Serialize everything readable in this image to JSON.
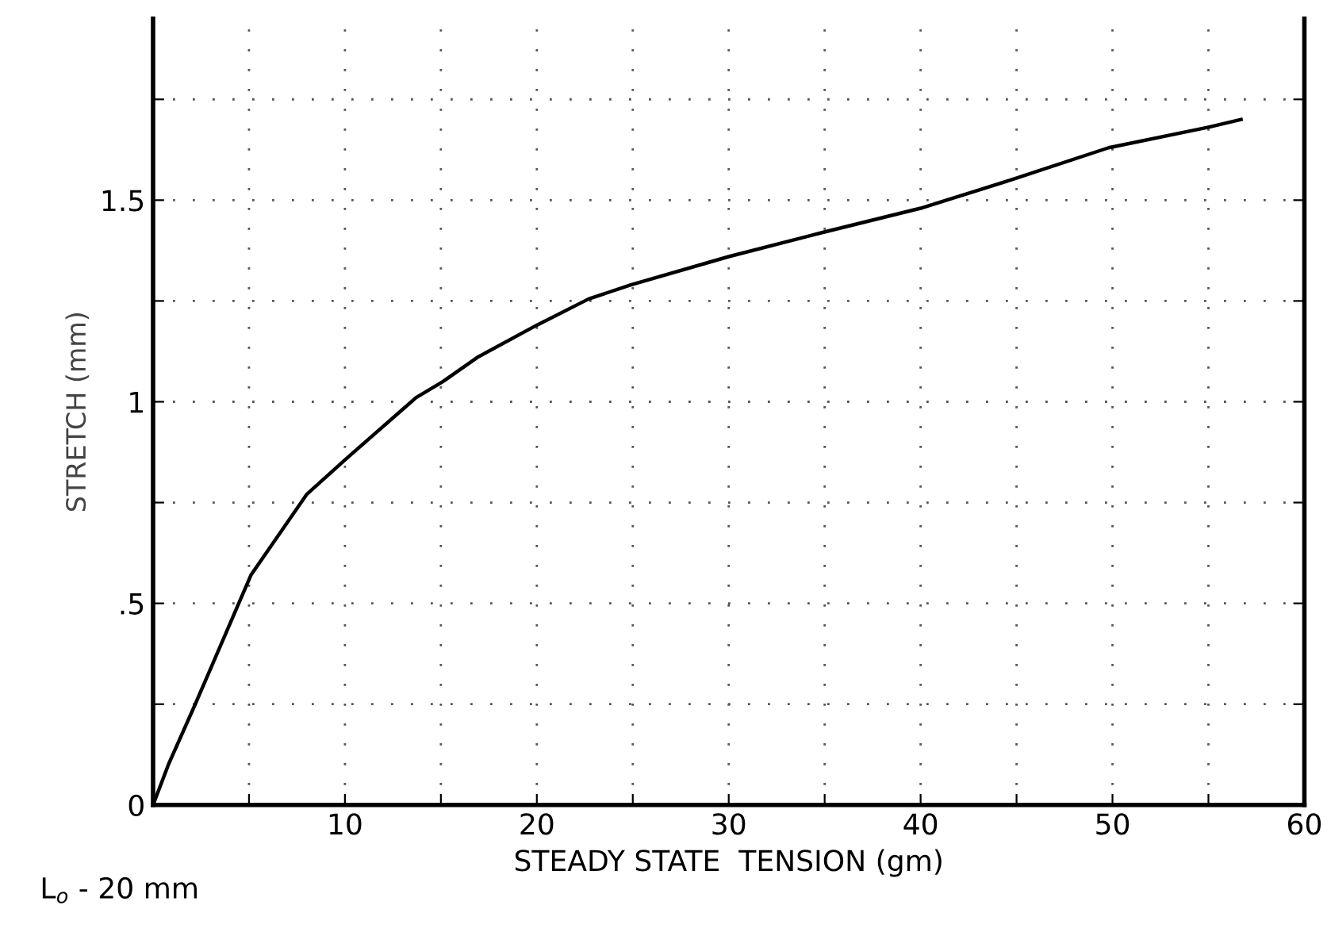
{
  "chart_data": {
    "type": "line",
    "xlabel": "STEADY STATE  TENSION (gm)",
    "ylabel": "STRETCH (mm)",
    "annotations": [
      "L$_{o}$ - 20 mm"
    ],
    "x": [
      0,
      0.8,
      2.2,
      5.1,
      8.0,
      10.1,
      13.7,
      15.1,
      16.9,
      20,
      22.7,
      24.9,
      30,
      34.9,
      40,
      42.7,
      44.7,
      49.8,
      54.9,
      56.7
    ],
    "series": [
      {
        "color": "#000000",
        "values": [
          0,
          0.1,
          0.25,
          0.57,
          0.77,
          0.86,
          1.01,
          1.05,
          1.11,
          1.19,
          1.255,
          1.29,
          1.36,
          1.42,
          1.48,
          1.52,
          1.55,
          1.63,
          1.68,
          1.7
        ]
      }
    ],
    "xlim": [
      0,
      60
    ],
    "ylim": [
      0,
      1.95
    ],
    "xticks": [
      {
        "value": 5,
        "label": null
      },
      10,
      {
        "value": 15,
        "label": null
      },
      20,
      {
        "value": 25,
        "label": null
      },
      30,
      {
        "value": 35,
        "label": null
      },
      40,
      {
        "value": 45,
        "label": null
      },
      50,
      {
        "value": 55,
        "label": null
      },
      60
    ],
    "yticks": [
      0,
      {
        "value": 0.25,
        "label": null
      },
      {
        "value": 0.5,
        "label": ".5"
      },
      {
        "value": 0.75,
        "label": null
      },
      1,
      {
        "value": 1.25,
        "label": null
      },
      1.5,
      {
        "value": 1.75,
        "label": null
      }
    ],
    "grid": true,
    "marker": "none",
    "line_style": "solid"
  }
}
